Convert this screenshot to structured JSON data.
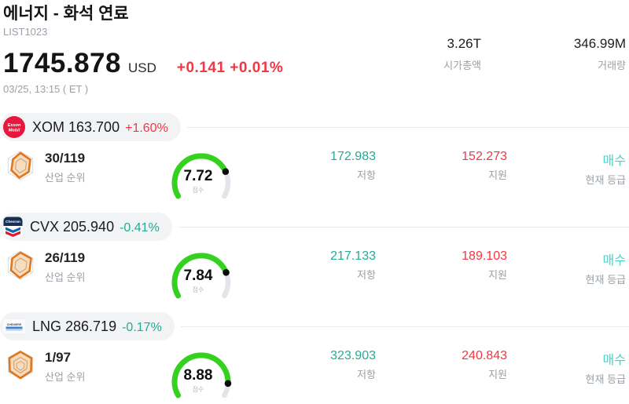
{
  "header": {
    "title": "에너지 - 화석 연료",
    "list_id": "LIST1023",
    "price": "1745.878",
    "currency": "USD",
    "change": "+0.141 +0.01%",
    "timestamp": "03/25, 13:15 ( ET )",
    "market_cap": {
      "value": "3.26T",
      "label": "시가총액"
    },
    "volume": {
      "value": "346.99M",
      "label": "거래량"
    }
  },
  "labels": {
    "industry_rank": "산업 순위",
    "score": "점수",
    "resistance": "저항",
    "support": "지원",
    "current_rating": "현재 등급"
  },
  "colors": {
    "up_red": "#f43543",
    "down_teal": "#23ab94",
    "rating_cyan": "#4ed0c6",
    "gauge_green": "#35d11f",
    "gauge_track": "#e3e5ea",
    "pill_bg": "#f2f3f5"
  },
  "stocks": [
    {
      "ticker": "XOM",
      "logo": "exxon-mobil-logo",
      "logo_text": {
        "line1": "Exxon",
        "line2": "Mobil"
      },
      "price": "163.700",
      "change": "+1.60%",
      "change_dir": "up",
      "industry_rank": "30/119",
      "score": 7.72,
      "score_text": "7.72",
      "resistance": "172.983",
      "support": "152.273",
      "rating": "매수"
    },
    {
      "ticker": "CVX",
      "logo": "chevron-logo",
      "logo_text": {
        "line1": "Chevron"
      },
      "price": "205.940",
      "change": "-0.41%",
      "change_dir": "down",
      "industry_rank": "26/119",
      "score": 7.84,
      "score_text": "7.84",
      "resistance": "217.133",
      "support": "189.103",
      "rating": "매수"
    },
    {
      "ticker": "LNG",
      "logo": "cheniere-logo",
      "logo_text": {
        "line1": "CHENIERE"
      },
      "price": "286.719",
      "change": "-0.17%",
      "change_dir": "down",
      "industry_rank": "1/97",
      "score": 8.88,
      "score_text": "8.88",
      "resistance": "323.903",
      "support": "240.843",
      "rating": "매수"
    }
  ]
}
